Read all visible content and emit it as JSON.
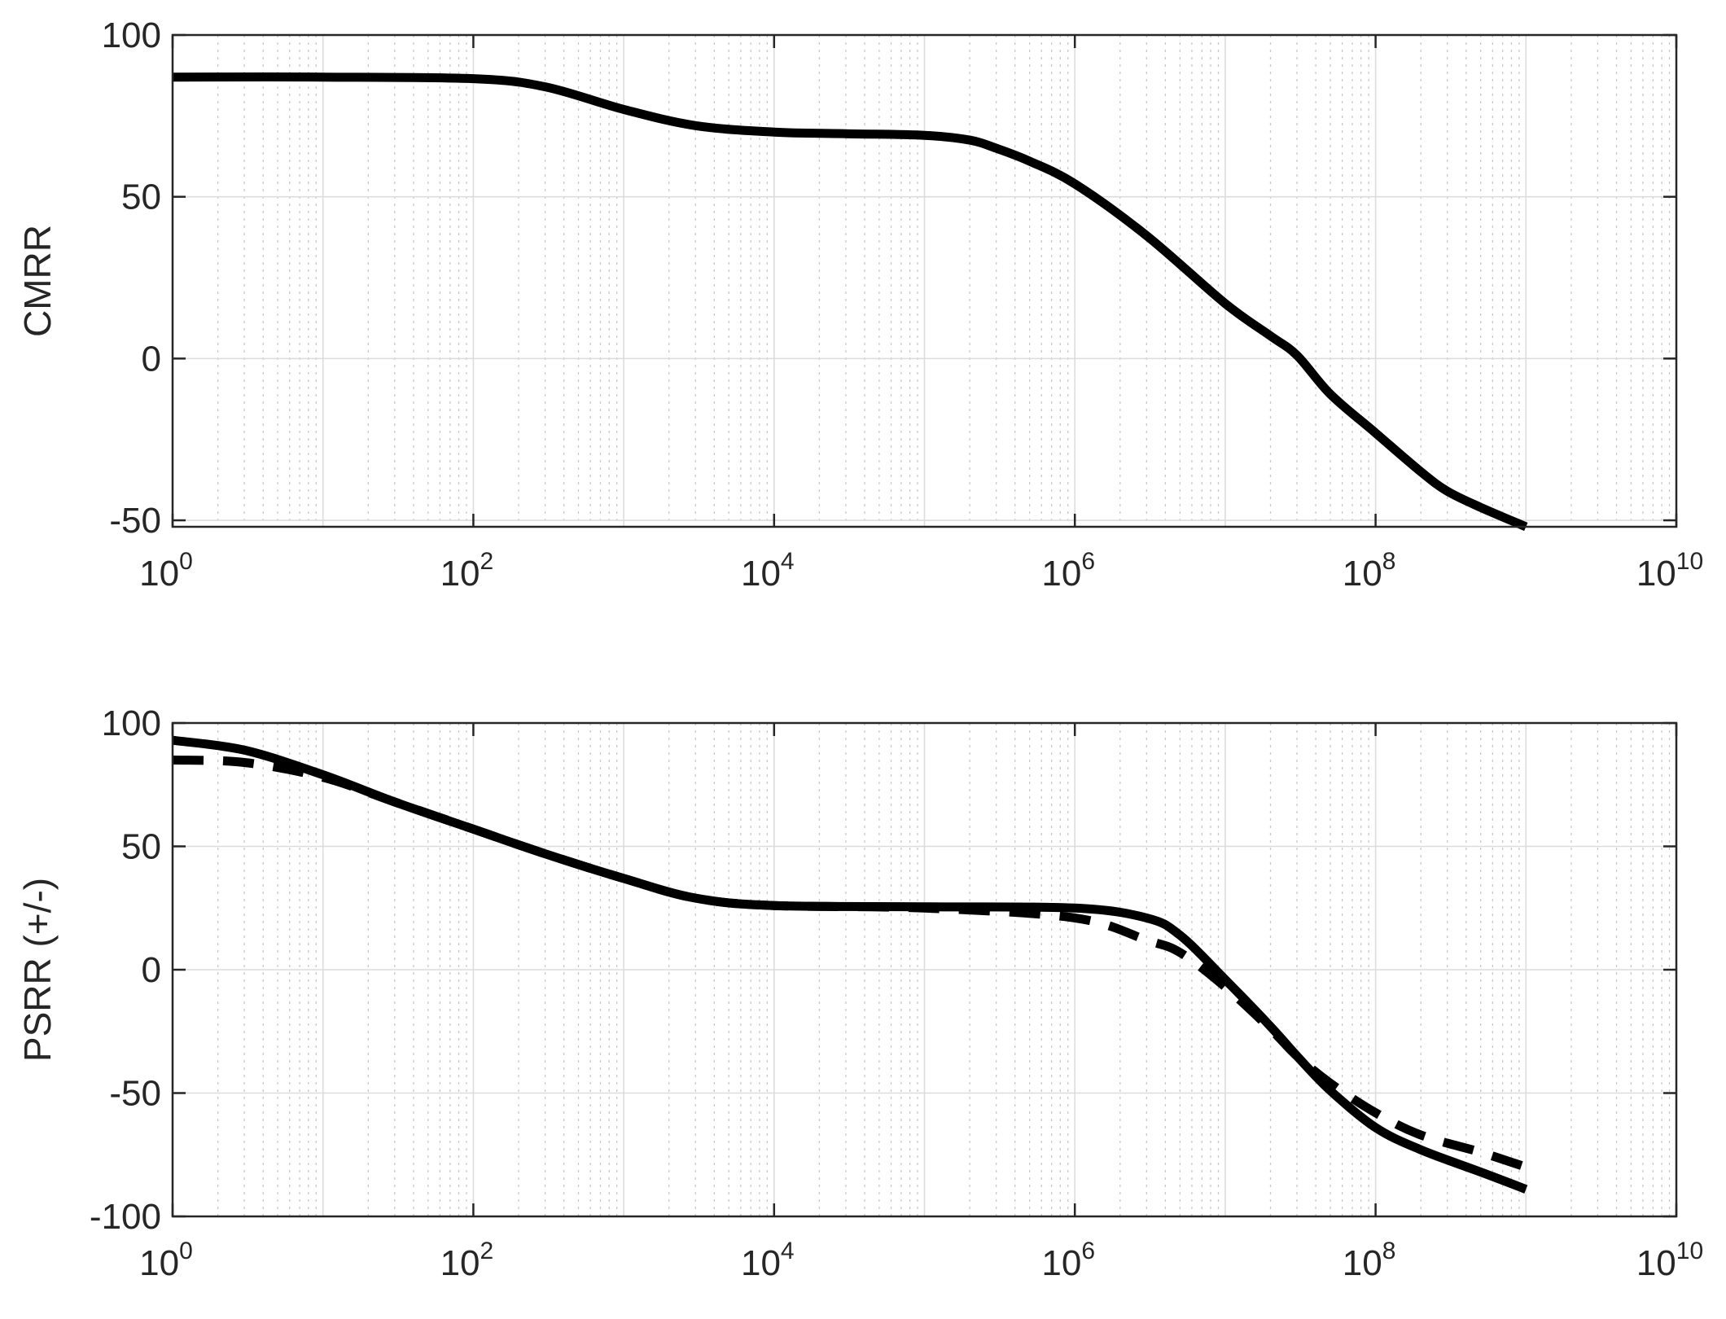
{
  "chart_data": [
    {
      "type": "line",
      "title": "",
      "xlabel": "",
      "ylabel": "CMRR",
      "xscale": "log",
      "xlim": [
        1,
        10000000000
      ],
      "ylim": [
        -52,
        100
      ],
      "grid": true,
      "x_ticks": [
        {
          "base": "10",
          "exp": "0"
        },
        {
          "base": "10",
          "exp": "2"
        },
        {
          "base": "10",
          "exp": "4"
        },
        {
          "base": "10",
          "exp": "6"
        },
        {
          "base": "10",
          "exp": "8"
        },
        {
          "base": "10",
          "exp": "10"
        }
      ],
      "y_ticks": [
        "100",
        "50",
        "0",
        "-50"
      ],
      "series": [
        {
          "style": "solid",
          "color": "#000000",
          "x": [
            1,
            10,
            100,
            300,
            1000,
            3000,
            10000,
            30000,
            100000,
            200000,
            300000,
            500000,
            1000000,
            3000000,
            10000000,
            20000000,
            30000000,
            50000000,
            100000000,
            200000000,
            300000000,
            500000000,
            1000000000
          ],
          "y": [
            87,
            87,
            86.5,
            84,
            77,
            72,
            70,
            69.5,
            69,
            67.5,
            65,
            61,
            54,
            38,
            17,
            7,
            1,
            -11,
            -23,
            -35,
            -41,
            -46,
            -52
          ]
        }
      ]
    },
    {
      "type": "line",
      "title": "",
      "xlabel": "",
      "ylabel": "PSRR (+/-)",
      "xscale": "log",
      "xlim": [
        1,
        10000000000
      ],
      "ylim": [
        -100,
        100
      ],
      "grid": true,
      "x_ticks": [
        {
          "base": "10",
          "exp": "0"
        },
        {
          "base": "10",
          "exp": "2"
        },
        {
          "base": "10",
          "exp": "4"
        },
        {
          "base": "10",
          "exp": "6"
        },
        {
          "base": "10",
          "exp": "8"
        },
        {
          "base": "10",
          "exp": "10"
        }
      ],
      "y_ticks": [
        "100",
        "50",
        "0",
        "-50",
        "-100"
      ],
      "series": [
        {
          "style": "solid",
          "color": "#000000",
          "x": [
            1,
            3,
            10,
            30,
            100,
            300,
            1000,
            3000,
            10000,
            100000,
            1000000,
            3000000,
            5000000,
            10000000,
            20000000,
            30000000,
            50000000,
            100000000,
            200000000,
            500000000,
            1000000000
          ],
          "y": [
            93,
            89,
            79,
            68,
            57,
            47,
            37,
            29,
            26,
            25.5,
            25,
            21,
            14,
            -4,
            -23,
            -35,
            -49,
            -64,
            -73,
            -82,
            -89
          ]
        },
        {
          "style": "dashed",
          "color": "#000000",
          "x": [
            1,
            3,
            10,
            30,
            100,
            300,
            1000,
            3000,
            10000,
            100000,
            1000000,
            3000000,
            5000000,
            10000000,
            20000000,
            30000000,
            50000000,
            100000000,
            200000000,
            500000000,
            1000000000
          ],
          "y": [
            85,
            84,
            78,
            68,
            57,
            47,
            37,
            29,
            26,
            25,
            21,
            12,
            7,
            -7,
            -24,
            -35,
            -46,
            -58,
            -67,
            -74,
            -80
          ]
        }
      ]
    }
  ]
}
